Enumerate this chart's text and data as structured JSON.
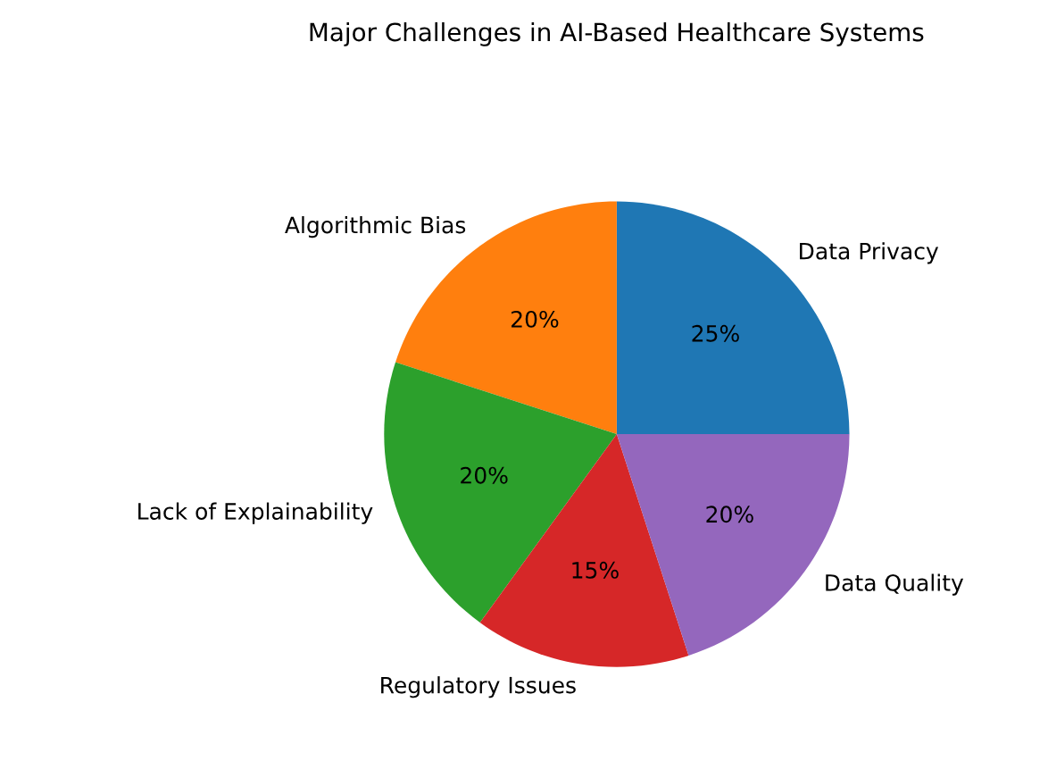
{
  "chart_data": {
    "type": "pie",
    "title": "Major Challenges in AI-Based Healthcare Systems",
    "categories": [
      "Data Privacy",
      "Algorithmic Bias",
      "Lack of Explainability",
      "Regulatory Issues",
      "Data Quality"
    ],
    "values": [
      25,
      20,
      20,
      15,
      20
    ],
    "value_labels": [
      "25%",
      "20%",
      "20%",
      "15%",
      "20%"
    ],
    "colors": [
      "#1f77b4",
      "#ff7f0e",
      "#2ca02c",
      "#d62728",
      "#9467bd"
    ],
    "legend": false
  }
}
